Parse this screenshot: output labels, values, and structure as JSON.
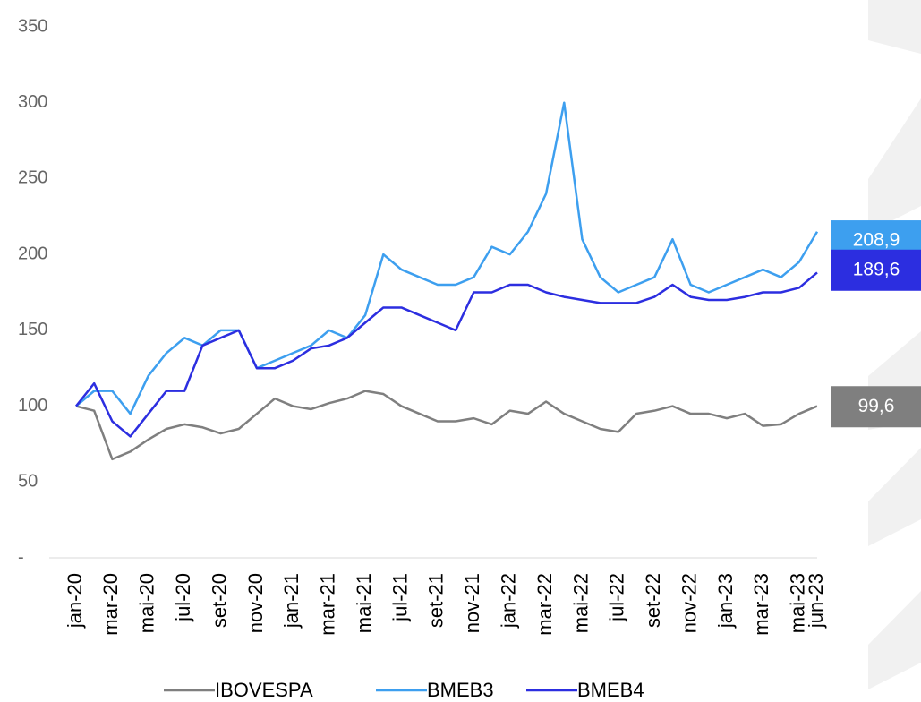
{
  "chart_data": {
    "type": "line",
    "categories": [
      "jan-20",
      null,
      "mar-20",
      null,
      "mai-20",
      null,
      "jul-20",
      null,
      "set-20",
      null,
      "nov-20",
      null,
      "jan-21",
      null,
      "mar-21",
      null,
      "mai-21",
      null,
      "jul-21",
      null,
      "set-21",
      null,
      "nov-21",
      null,
      "jan-22",
      null,
      "mar-22",
      null,
      "mai-22",
      null,
      "jul-22",
      null,
      "set-22",
      null,
      "nov-22",
      null,
      "jan-23",
      null,
      "mar-23",
      null,
      "mai-23",
      "jun-23"
    ],
    "series": [
      {
        "name": "IBOVESPA",
        "color": "#7f7f7f",
        "values": [
          100,
          97,
          65,
          70,
          78,
          85,
          88,
          86,
          82,
          85,
          95,
          105,
          100,
          98,
          102,
          105,
          110,
          108,
          100,
          95,
          90,
          90,
          92,
          88,
          97,
          95,
          103,
          95,
          90,
          85,
          83,
          95,
          97,
          100,
          95,
          95,
          92,
          95,
          87,
          88,
          95,
          100
        ],
        "end_label": {
          "value": 99.6,
          "label": "99,6"
        }
      },
      {
        "name": "BMEB3",
        "color": "#3d9fef",
        "values": [
          100,
          110,
          110,
          95,
          120,
          135,
          145,
          140,
          150,
          150,
          125,
          130,
          135,
          140,
          150,
          145,
          160,
          200,
          190,
          185,
          180,
          180,
          185,
          205,
          200,
          215,
          240,
          300,
          210,
          185,
          175,
          180,
          185,
          210,
          180,
          175,
          180,
          185,
          190,
          185,
          195,
          215
        ],
        "end_label": {
          "value": 208.9,
          "label": "208,9"
        }
      },
      {
        "name": "BMEB4",
        "color": "#2c2ee0",
        "values": [
          100,
          115,
          90,
          80,
          95,
          110,
          110,
          140,
          145,
          150,
          125,
          125,
          130,
          138,
          140,
          145,
          155,
          165,
          165,
          160,
          155,
          150,
          175,
          175,
          180,
          180,
          175,
          172,
          170,
          168,
          168,
          168,
          172,
          180,
          172,
          170,
          170,
          172,
          175,
          175,
          178,
          188
        ],
        "end_label": {
          "value": 189.6,
          "label": "189,6"
        }
      }
    ],
    "ylim": [
      0,
      350
    ],
    "yticks": [
      {
        "value": 0,
        "label": "-"
      },
      50,
      100,
      150,
      200,
      250,
      300,
      350
    ]
  }
}
